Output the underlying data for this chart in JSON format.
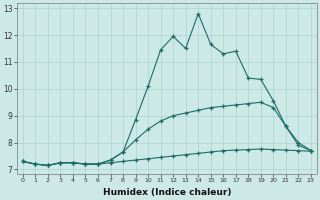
{
  "xlabel": "Humidex (Indice chaleur)",
  "background_color": "#cce9e7",
  "grid_color": "#aad4d0",
  "line_color": "#1c6b65",
  "xlim": [
    -0.5,
    23.5
  ],
  "ylim": [
    6.85,
    13.2
  ],
  "yticks": [
    7,
    8,
    9,
    10,
    11,
    12,
    13
  ],
  "xticks": [
    0,
    1,
    2,
    3,
    4,
    5,
    6,
    7,
    8,
    9,
    10,
    11,
    12,
    13,
    14,
    15,
    16,
    17,
    18,
    19,
    20,
    21,
    22,
    23
  ],
  "line1_x": [
    0,
    1,
    2,
    3,
    4,
    5,
    6,
    7,
    8,
    9,
    10,
    11,
    12,
    13,
    14,
    15,
    16,
    17,
    18,
    19,
    20,
    21,
    22,
    23
  ],
  "line1_y": [
    7.3,
    7.2,
    7.15,
    7.25,
    7.25,
    7.2,
    7.2,
    7.25,
    7.3,
    7.35,
    7.4,
    7.45,
    7.5,
    7.55,
    7.6,
    7.65,
    7.7,
    7.72,
    7.74,
    7.76,
    7.74,
    7.72,
    7.7,
    7.68
  ],
  "line2_x": [
    0,
    1,
    2,
    3,
    4,
    5,
    6,
    7,
    8,
    9,
    10,
    11,
    12,
    13,
    14,
    15,
    16,
    17,
    18,
    19,
    20,
    21,
    22,
    23
  ],
  "line2_y": [
    7.3,
    7.2,
    7.15,
    7.25,
    7.25,
    7.2,
    7.2,
    7.35,
    7.65,
    8.1,
    8.5,
    8.8,
    9.0,
    9.1,
    9.2,
    9.3,
    9.35,
    9.4,
    9.45,
    9.5,
    9.3,
    8.6,
    7.9,
    7.7
  ],
  "line3_x": [
    0,
    1,
    2,
    3,
    4,
    5,
    6,
    7,
    8,
    9,
    10,
    11,
    12,
    13,
    14,
    15,
    16,
    17,
    18,
    19,
    20,
    21,
    22,
    23
  ],
  "line3_y": [
    7.3,
    7.2,
    7.15,
    7.25,
    7.25,
    7.2,
    7.2,
    7.35,
    7.65,
    8.85,
    10.1,
    11.45,
    11.95,
    11.5,
    12.8,
    11.65,
    11.3,
    11.4,
    10.4,
    10.35,
    9.55,
    8.6,
    8.0,
    7.7
  ]
}
